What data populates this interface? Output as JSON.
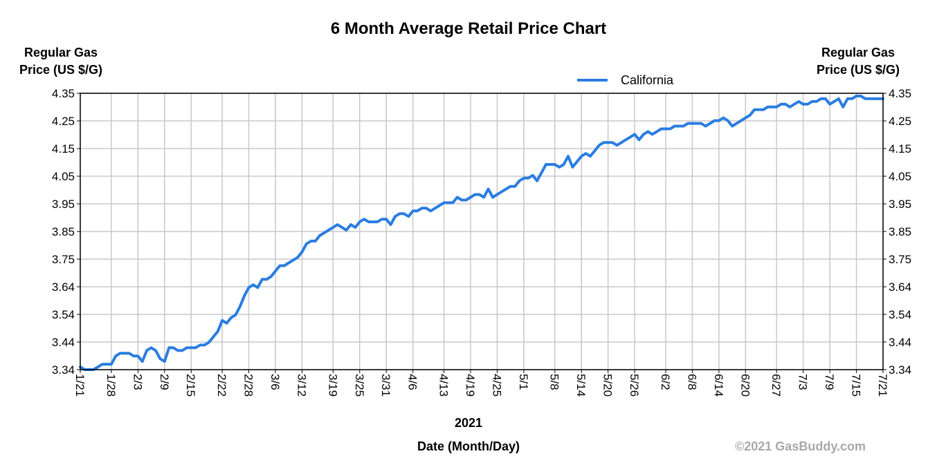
{
  "chart_data": {
    "type": "line",
    "title": "6 Month Average Retail Price Chart",
    "ylabel": "Regular Gas Price (US $/G)",
    "ylabel_lines": [
      "Regular Gas",
      "Price (US $/G)"
    ],
    "xlabel": "Date (Month/Day)",
    "year_label": "2021",
    "credit": "©2021 GasBuddy.com",
    "ylim": [
      3.34,
      4.35
    ],
    "yticks": [
      "4.35",
      "4.25",
      "4.15",
      "4.05",
      "3.95",
      "3.85",
      "3.75",
      "3.64",
      "3.54",
      "3.44",
      "3.34"
    ],
    "xticks": [
      "1/21",
      "1/28",
      "2/3",
      "2/9",
      "2/15",
      "2/22",
      "2/28",
      "3/6",
      "3/12",
      "3/19",
      "3/25",
      "3/31",
      "4/6",
      "4/13",
      "4/19",
      "4/25",
      "5/1",
      "5/8",
      "5/14",
      "5/20",
      "5/26",
      "6/2",
      "6/8",
      "6/14",
      "6/20",
      "6/27",
      "7/3",
      "7/9",
      "7/15",
      "7/21"
    ],
    "grid": true,
    "legend": {
      "position": "top-right",
      "color": "#2a7de1"
    },
    "series": [
      {
        "name": "California",
        "color": "#2a7de1",
        "points": [
          [
            "1/21",
            3.35
          ],
          [
            "1/22",
            3.34
          ],
          [
            "1/23",
            3.34
          ],
          [
            "1/24",
            3.34
          ],
          [
            "1/25",
            3.35
          ],
          [
            "1/26",
            3.36
          ],
          [
            "1/27",
            3.36
          ],
          [
            "1/28",
            3.36
          ],
          [
            "1/29",
            3.39
          ],
          [
            "1/30",
            3.4
          ],
          [
            "1/31",
            3.4
          ],
          [
            "2/1",
            3.4
          ],
          [
            "2/2",
            3.39
          ],
          [
            "2/3",
            3.39
          ],
          [
            "2/4",
            3.37
          ],
          [
            "2/5",
            3.41
          ],
          [
            "2/6",
            3.42
          ],
          [
            "2/7",
            3.41
          ],
          [
            "2/8",
            3.38
          ],
          [
            "2/9",
            3.37
          ],
          [
            "2/10",
            3.42
          ],
          [
            "2/11",
            3.42
          ],
          [
            "2/12",
            3.41
          ],
          [
            "2/13",
            3.41
          ],
          [
            "2/14",
            3.42
          ],
          [
            "2/15",
            3.42
          ],
          [
            "2/16",
            3.42
          ],
          [
            "2/17",
            3.43
          ],
          [
            "2/18",
            3.43
          ],
          [
            "2/19",
            3.44
          ],
          [
            "2/20",
            3.46
          ],
          [
            "2/21",
            3.48
          ],
          [
            "2/22",
            3.52
          ],
          [
            "2/23",
            3.51
          ],
          [
            "2/24",
            3.53
          ],
          [
            "2/25",
            3.54
          ],
          [
            "2/26",
            3.57
          ],
          [
            "2/27",
            3.61
          ],
          [
            "2/28",
            3.64
          ],
          [
            "3/1",
            3.65
          ],
          [
            "3/2",
            3.64
          ],
          [
            "3/3",
            3.67
          ],
          [
            "3/4",
            3.67
          ],
          [
            "3/5",
            3.68
          ],
          [
            "3/6",
            3.7
          ],
          [
            "3/7",
            3.72
          ],
          [
            "3/8",
            3.72
          ],
          [
            "3/9",
            3.73
          ],
          [
            "3/10",
            3.74
          ],
          [
            "3/11",
            3.75
          ],
          [
            "3/12",
            3.77
          ],
          [
            "3/13",
            3.8
          ],
          [
            "3/14",
            3.81
          ],
          [
            "3/15",
            3.81
          ],
          [
            "3/16",
            3.83
          ],
          [
            "3/17",
            3.84
          ],
          [
            "3/18",
            3.85
          ],
          [
            "3/19",
            3.86
          ],
          [
            "3/20",
            3.87
          ],
          [
            "3/21",
            3.86
          ],
          [
            "3/22",
            3.85
          ],
          [
            "3/23",
            3.87
          ],
          [
            "3/24",
            3.86
          ],
          [
            "3/25",
            3.88
          ],
          [
            "3/26",
            3.89
          ],
          [
            "3/27",
            3.88
          ],
          [
            "3/28",
            3.88
          ],
          [
            "3/29",
            3.88
          ],
          [
            "3/30",
            3.89
          ],
          [
            "3/31",
            3.89
          ],
          [
            "4/1",
            3.87
          ],
          [
            "4/2",
            3.9
          ],
          [
            "4/3",
            3.91
          ],
          [
            "4/4",
            3.91
          ],
          [
            "4/5",
            3.9
          ],
          [
            "4/6",
            3.92
          ],
          [
            "4/7",
            3.92
          ],
          [
            "4/8",
            3.93
          ],
          [
            "4/9",
            3.93
          ],
          [
            "4/10",
            3.92
          ],
          [
            "4/11",
            3.93
          ],
          [
            "4/12",
            3.94
          ],
          [
            "4/13",
            3.95
          ],
          [
            "4/14",
            3.95
          ],
          [
            "4/15",
            3.95
          ],
          [
            "4/16",
            3.97
          ],
          [
            "4/17",
            3.96
          ],
          [
            "4/18",
            3.96
          ],
          [
            "4/19",
            3.97
          ],
          [
            "4/20",
            3.98
          ],
          [
            "4/21",
            3.98
          ],
          [
            "4/22",
            3.97
          ],
          [
            "4/23",
            4.0
          ],
          [
            "4/24",
            3.97
          ],
          [
            "4/25",
            3.98
          ],
          [
            "4/26",
            3.99
          ],
          [
            "4/27",
            4.0
          ],
          [
            "4/28",
            4.01
          ],
          [
            "4/29",
            4.01
          ],
          [
            "4/30",
            4.03
          ],
          [
            "5/1",
            4.04
          ],
          [
            "5/2",
            4.04
          ],
          [
            "5/3",
            4.05
          ],
          [
            "5/4",
            4.03
          ],
          [
            "5/5",
            4.06
          ],
          [
            "5/6",
            4.09
          ],
          [
            "5/7",
            4.09
          ],
          [
            "5/8",
            4.09
          ],
          [
            "5/9",
            4.08
          ],
          [
            "5/10",
            4.09
          ],
          [
            "5/11",
            4.12
          ],
          [
            "5/12",
            4.08
          ],
          [
            "5/13",
            4.1
          ],
          [
            "5/14",
            4.12
          ],
          [
            "5/15",
            4.13
          ],
          [
            "5/16",
            4.12
          ],
          [
            "5/17",
            4.14
          ],
          [
            "5/18",
            4.16
          ],
          [
            "5/19",
            4.17
          ],
          [
            "5/20",
            4.17
          ],
          [
            "5/21",
            4.17
          ],
          [
            "5/22",
            4.16
          ],
          [
            "5/23",
            4.17
          ],
          [
            "5/24",
            4.18
          ],
          [
            "5/25",
            4.19
          ],
          [
            "5/26",
            4.2
          ],
          [
            "5/27",
            4.18
          ],
          [
            "5/28",
            4.2
          ],
          [
            "5/29",
            4.21
          ],
          [
            "5/30",
            4.2
          ],
          [
            "5/31",
            4.21
          ],
          [
            "6/1",
            4.22
          ],
          [
            "6/2",
            4.22
          ],
          [
            "6/3",
            4.22
          ],
          [
            "6/4",
            4.23
          ],
          [
            "6/5",
            4.23
          ],
          [
            "6/6",
            4.23
          ],
          [
            "6/7",
            4.24
          ],
          [
            "6/8",
            4.24
          ],
          [
            "6/9",
            4.24
          ],
          [
            "6/10",
            4.24
          ],
          [
            "6/11",
            4.23
          ],
          [
            "6/12",
            4.24
          ],
          [
            "6/13",
            4.25
          ],
          [
            "6/14",
            4.25
          ],
          [
            "6/15",
            4.26
          ],
          [
            "6/16",
            4.25
          ],
          [
            "6/17",
            4.23
          ],
          [
            "6/18",
            4.24
          ],
          [
            "6/19",
            4.25
          ],
          [
            "6/20",
            4.26
          ],
          [
            "6/21",
            4.27
          ],
          [
            "6/22",
            4.29
          ],
          [
            "6/23",
            4.29
          ],
          [
            "6/24",
            4.29
          ],
          [
            "6/25",
            4.3
          ],
          [
            "6/26",
            4.3
          ],
          [
            "6/27",
            4.3
          ],
          [
            "6/28",
            4.31
          ],
          [
            "6/29",
            4.31
          ],
          [
            "6/30",
            4.3
          ],
          [
            "7/1",
            4.31
          ],
          [
            "7/2",
            4.32
          ],
          [
            "7/3",
            4.31
          ],
          [
            "7/4",
            4.31
          ],
          [
            "7/5",
            4.32
          ],
          [
            "7/6",
            4.32
          ],
          [
            "7/7",
            4.33
          ],
          [
            "7/8",
            4.33
          ],
          [
            "7/9",
            4.31
          ],
          [
            "7/10",
            4.32
          ],
          [
            "7/11",
            4.33
          ],
          [
            "7/12",
            4.3
          ],
          [
            "7/13",
            4.33
          ],
          [
            "7/14",
            4.33
          ],
          [
            "7/15",
            4.34
          ],
          [
            "7/16",
            4.34
          ],
          [
            "7/17",
            4.33
          ],
          [
            "7/18",
            4.33
          ],
          [
            "7/19",
            4.33
          ],
          [
            "7/20",
            4.33
          ],
          [
            "7/21",
            4.33
          ]
        ]
      }
    ]
  }
}
